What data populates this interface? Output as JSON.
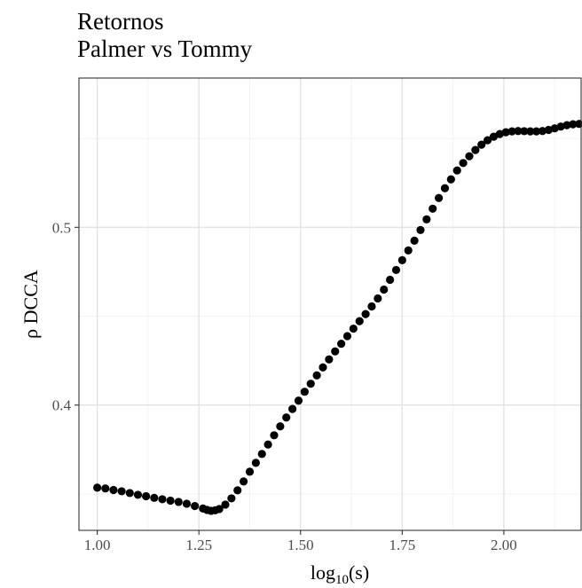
{
  "chart_data": {
    "type": "scatter",
    "title": "Retornos",
    "subtitle": "Palmer vs Tommy",
    "xlabel": "log10(s)",
    "xlabel_main": "log",
    "xlabel_sub": "10",
    "xlabel_suffix": "(s)",
    "ylabel": "ρ DCCA",
    "xlim": [
      0.955,
      2.19
    ],
    "ylim": [
      0.3295,
      0.584
    ],
    "x_ticks": [
      1.0,
      1.25,
      1.5,
      1.75,
      2.0
    ],
    "x_tick_labels": [
      "1.00",
      "1.25",
      "1.50",
      "1.75",
      "2.00"
    ],
    "x_minor_ticks": [
      1.125,
      1.375,
      1.625,
      1.875,
      2.125
    ],
    "y_ticks": [
      0.4,
      0.5
    ],
    "y_tick_labels": [
      "0.4",
      "0.5"
    ],
    "y_minor_ticks": [
      0.35,
      0.45,
      0.55
    ],
    "grid": true,
    "point_color": "#000000",
    "points": [
      [
        1.0,
        0.3535
      ],
      [
        1.02,
        0.3531
      ],
      [
        1.04,
        0.3522
      ],
      [
        1.06,
        0.3515
      ],
      [
        1.08,
        0.3505
      ],
      [
        1.1,
        0.3495
      ],
      [
        1.12,
        0.3487
      ],
      [
        1.14,
        0.3478
      ],
      [
        1.16,
        0.347
      ],
      [
        1.18,
        0.3462
      ],
      [
        1.2,
        0.3455
      ],
      [
        1.22,
        0.3445
      ],
      [
        1.24,
        0.3432
      ],
      [
        1.26,
        0.3418
      ],
      [
        1.27,
        0.341
      ],
      [
        1.28,
        0.3405
      ],
      [
        1.29,
        0.3408
      ],
      [
        1.3,
        0.3415
      ],
      [
        1.315,
        0.344
      ],
      [
        1.33,
        0.3475
      ],
      [
        1.345,
        0.352
      ],
      [
        1.36,
        0.357
      ],
      [
        1.375,
        0.3625
      ],
      [
        1.39,
        0.3675
      ],
      [
        1.405,
        0.3725
      ],
      [
        1.42,
        0.3778
      ],
      [
        1.435,
        0.383
      ],
      [
        1.45,
        0.388
      ],
      [
        1.465,
        0.393
      ],
      [
        1.48,
        0.3978
      ],
      [
        1.495,
        0.4025
      ],
      [
        1.51,
        0.4075
      ],
      [
        1.525,
        0.412
      ],
      [
        1.54,
        0.4167
      ],
      [
        1.555,
        0.4212
      ],
      [
        1.57,
        0.4257
      ],
      [
        1.585,
        0.4302
      ],
      [
        1.6,
        0.4345
      ],
      [
        1.615,
        0.4388
      ],
      [
        1.63,
        0.443
      ],
      [
        1.645,
        0.4472
      ],
      [
        1.66,
        0.4512
      ],
      [
        1.675,
        0.4555
      ],
      [
        1.69,
        0.46
      ],
      [
        1.705,
        0.465
      ],
      [
        1.72,
        0.4705
      ],
      [
        1.735,
        0.476
      ],
      [
        1.75,
        0.4815
      ],
      [
        1.765,
        0.487
      ],
      [
        1.78,
        0.4925
      ],
      [
        1.795,
        0.4985
      ],
      [
        1.81,
        0.5045
      ],
      [
        1.825,
        0.5105
      ],
      [
        1.84,
        0.5165
      ],
      [
        1.855,
        0.522
      ],
      [
        1.87,
        0.527
      ],
      [
        1.885,
        0.532
      ],
      [
        1.9,
        0.5362
      ],
      [
        1.915,
        0.54
      ],
      [
        1.93,
        0.5435
      ],
      [
        1.945,
        0.5465
      ],
      [
        1.96,
        0.549
      ],
      [
        1.975,
        0.551
      ],
      [
        1.99,
        0.5525
      ],
      [
        2.005,
        0.5535
      ],
      [
        2.02,
        0.554
      ],
      [
        2.035,
        0.5542
      ],
      [
        2.05,
        0.5541
      ],
      [
        2.065,
        0.554
      ],
      [
        2.08,
        0.554
      ],
      [
        2.095,
        0.5542
      ],
      [
        2.11,
        0.5548
      ],
      [
        2.125,
        0.5557
      ],
      [
        2.14,
        0.5567
      ],
      [
        2.155,
        0.5575
      ],
      [
        2.17,
        0.558
      ],
      [
        2.185,
        0.5582
      ],
      [
        2.2,
        0.5583
      ],
      [
        2.215,
        0.5583
      ],
      [
        2.23,
        0.5582
      ],
      [
        2.245,
        0.558
      ]
    ]
  }
}
